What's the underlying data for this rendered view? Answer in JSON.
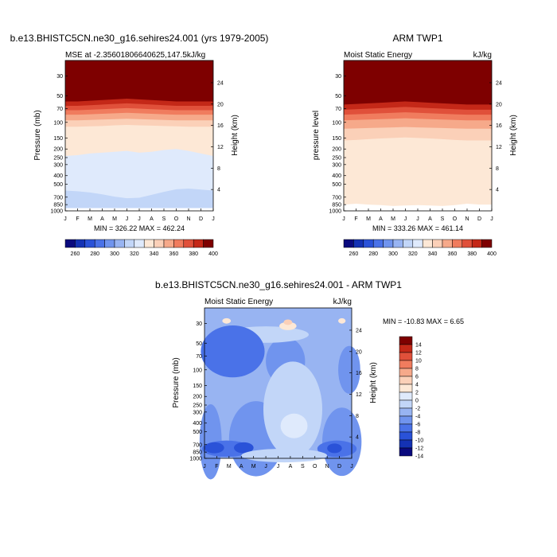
{
  "chart_data": [
    {
      "type": "contour",
      "title": "b.e13.BHISTC5CN.ne30_g16.sehires24.001 (yrs 1979-2005)",
      "subtitle_left": "MSE at -2.35601806640625,147.5kJ/kg",
      "subtitle_right": "",
      "ylabel": "Pressure (mb)",
      "ylabel_right": "Height (km)",
      "minmax": "MIN = 326.22 MAX = 462.24",
      "x_ticks": [
        "J",
        "F",
        "M",
        "A",
        "M",
        "J",
        "J",
        "A",
        "S",
        "O",
        "N",
        "D",
        "J"
      ],
      "p_ticks": [
        30,
        50,
        70,
        100,
        150,
        200,
        250,
        300,
        400,
        500,
        700,
        850,
        1000
      ],
      "height_ticks": [
        4,
        8,
        12,
        16,
        20,
        24
      ],
      "ylim": [
        1000,
        20
      ],
      "levels": [
        260,
        270,
        280,
        290,
        300,
        310,
        320,
        330,
        340,
        350,
        360,
        370,
        380,
        390,
        400
      ],
      "colorbar_labels": [
        260,
        280,
        300,
        320,
        340,
        360,
        380,
        400
      ],
      "boundaries": [
        {
          "level": 320,
          "p": [
            930,
            930,
            930,
            930,
            930,
            930,
            930,
            930,
            930,
            930,
            930,
            930,
            930
          ]
        },
        {
          "level": 330,
          "p": [
            590,
            600,
            620,
            650,
            690,
            720,
            710,
            660,
            610,
            570,
            560,
            575,
            590
          ]
        },
        {
          "level": 340,
          "p": [
            240,
            235,
            225,
            220,
            215,
            210,
            220,
            215,
            205,
            200,
            210,
            225,
            240
          ]
        },
        {
          "level": 350,
          "p": [
            112,
            112,
            111,
            110,
            108,
            107,
            108,
            109,
            110,
            111,
            112,
            112,
            112
          ]
        },
        {
          "level": 360,
          "p": [
            95,
            95,
            94,
            93,
            92,
            91,
            92,
            93,
            94,
            95,
            95,
            95,
            95
          ]
        },
        {
          "level": 370,
          "p": [
            82,
            82,
            81,
            80,
            79,
            78,
            79,
            80,
            81,
            82,
            82,
            82,
            82
          ]
        },
        {
          "level": 380,
          "p": [
            73,
            73,
            72,
            71,
            70,
            69,
            70,
            71,
            72,
            73,
            73,
            73,
            73
          ]
        },
        {
          "level": 390,
          "p": [
            65,
            65,
            64,
            63,
            62,
            61,
            62,
            63,
            64,
            65,
            65,
            65,
            65
          ]
        },
        {
          "level": 400,
          "p": [
            58,
            58,
            57,
            56,
            55,
            54,
            55,
            56,
            57,
            58,
            58,
            58,
            58
          ]
        }
      ]
    },
    {
      "type": "contour",
      "title": "ARM TWP1",
      "subtitle_left": "Moist Static Energy",
      "subtitle_right": "kJ/kg",
      "ylabel": "pressure level",
      "ylabel_right": "Height (km)",
      "minmax": "MIN = 333.26 MAX = 461.14",
      "x_ticks": [
        "J",
        "F",
        "M",
        "A",
        "M",
        "J",
        "J",
        "A",
        "S",
        "O",
        "N",
        "D",
        "J"
      ],
      "p_ticks": [
        30,
        50,
        70,
        100,
        150,
        200,
        250,
        300,
        400,
        500,
        700,
        850,
        1000
      ],
      "height_ticks": [
        4,
        8,
        12,
        16,
        20,
        24
      ],
      "ylim": [
        1000,
        20
      ],
      "levels": [
        260,
        270,
        280,
        290,
        300,
        310,
        320,
        330,
        340,
        350,
        360,
        370,
        380,
        390,
        400
      ],
      "colorbar_labels": [
        260,
        280,
        300,
        320,
        340,
        360,
        380,
        400
      ],
      "boundaries": [
        {
          "level": 340,
          "p": [
            850,
            830,
            850,
            860,
            880,
            870,
            860,
            870,
            880,
            860,
            830,
            850,
            850
          ]
        },
        {
          "level": 350,
          "p": [
            160,
            158,
            155,
            152,
            150,
            148,
            150,
            152,
            155,
            158,
            160,
            160,
            160
          ]
        },
        {
          "level": 360,
          "p": [
            118,
            117,
            116,
            115,
            114,
            113,
            114,
            115,
            116,
            117,
            118,
            118,
            118
          ]
        },
        {
          "level": 370,
          "p": [
            95,
            94,
            93,
            92,
            91,
            90,
            91,
            92,
            93,
            94,
            95,
            95,
            95
          ]
        },
        {
          "level": 380,
          "p": [
            82,
            81,
            80,
            79,
            78,
            77,
            78,
            79,
            80,
            81,
            82,
            82,
            82
          ]
        },
        {
          "level": 390,
          "p": [
            72,
            71,
            70,
            69,
            68,
            67,
            68,
            69,
            70,
            71,
            72,
            72,
            72
          ]
        },
        {
          "level": 400,
          "p": [
            63,
            62,
            61,
            60,
            59,
            58,
            59,
            60,
            61,
            62,
            63,
            63,
            63
          ]
        }
      ]
    },
    {
      "type": "contour",
      "title": "b.e13.BHISTC5CN.ne30_g16.sehires24.001 - ARM TWP1",
      "subtitle_left": "Moist Static Energy",
      "subtitle_right": "kJ/kg",
      "ylabel": "Pressure (mb)",
      "ylabel_right": "Height (km)",
      "minmax": "MIN = -10.83 MAX =   6.65",
      "x_ticks": [
        "J",
        "F",
        "M",
        "A",
        "M",
        "J",
        "J",
        "A",
        "S",
        "O",
        "N",
        "D",
        "J"
      ],
      "p_ticks": [
        30,
        50,
        70,
        100,
        150,
        200,
        250,
        300,
        400,
        500,
        700,
        850,
        1000
      ],
      "height_ticks": [
        4,
        8,
        12,
        16,
        20,
        24
      ],
      "ylim": [
        1000,
        20
      ],
      "levels": [
        -14,
        -12,
        -10,
        -8,
        -6,
        -4,
        -2,
        0,
        2,
        4,
        6,
        8,
        10,
        12,
        14
      ],
      "colorbar_labels": [
        14,
        12,
        10,
        8,
        6,
        4,
        2,
        0,
        -2,
        -4,
        -6,
        -8,
        -10,
        -12,
        -14
      ],
      "base_level": -4,
      "blobs": [
        {
          "level": -6,
          "cx": 4.2,
          "cp": 600,
          "rx": 2.2,
          "rp": 0.55
        },
        {
          "level": -6,
          "cx": 0.5,
          "cp": 650,
          "rx": 0.9,
          "rp": 0.55
        },
        {
          "level": -6,
          "cx": 11.2,
          "cp": 650,
          "rx": 1.6,
          "rp": 0.5
        },
        {
          "level": -6,
          "cx": 6.6,
          "cp": 80,
          "rx": 1.6,
          "rp": 0.35
        },
        {
          "level": -2,
          "cx": 5.0,
          "cp": 40,
          "rx": 3.5,
          "rp": 0.12
        },
        {
          "level": -8,
          "cx": 2.3,
          "cp": 62,
          "rx": 2.6,
          "rp": 0.38
        },
        {
          "level": -6,
          "cx": 11.8,
          "cp": 100,
          "rx": 0.9,
          "rp": 0.35
        },
        {
          "level": -2,
          "cx": 7.2,
          "cp": 280,
          "rx": 2.4,
          "rp": 0.7
        },
        {
          "level": 0,
          "cx": 7.3,
          "cp": 430,
          "rx": 1.1,
          "rp": 0.18
        },
        {
          "level": 2,
          "cx": 6.8,
          "cp": 32,
          "rx": 0.7,
          "rp": 0.06
        },
        {
          "level": 4,
          "cx": 6.8,
          "cp": 29,
          "rx": 0.35,
          "rp": 0.04
        },
        {
          "level": 2,
          "cx": 1.8,
          "cp": 28,
          "rx": 0.35,
          "rp": 0.04
        },
        {
          "level": 2,
          "cx": 11.2,
          "cp": 28,
          "rx": 0.3,
          "rp": 0.04
        },
        {
          "level": -8,
          "cx": 1.8,
          "cp": 780,
          "rx": 2.0,
          "rp": 0.12
        },
        {
          "level": -8,
          "cx": 10.8,
          "cp": 780,
          "rx": 1.6,
          "rp": 0.12
        },
        {
          "level": -10,
          "cx": 0.8,
          "cp": 760,
          "rx": 0.8,
          "rp": 0.08
        },
        {
          "level": -10,
          "cx": 3.2,
          "cp": 760,
          "rx": 0.8,
          "rp": 0.08
        },
        {
          "level": -10,
          "cx": 10.6,
          "cp": 770,
          "rx": 0.6,
          "rp": 0.07
        },
        {
          "level": -2,
          "cx": 6.5,
          "cp": 930,
          "rx": 3.5,
          "rp": 0.1
        }
      ]
    }
  ],
  "colors": {
    "mse_scale": [
      "#0a0a7e",
      "#1432b4",
      "#2a52d8",
      "#4a72e8",
      "#7094ee",
      "#98b4f2",
      "#c2d6f8",
      "#dfeafc",
      "#fde8d6",
      "#fbd0b8",
      "#f6a98a",
      "#f07c5e",
      "#e0503a",
      "#c42818",
      "#7e0000"
    ],
    "diff_scale": [
      "#0a0a7e",
      "#1432b4",
      "#2a52d8",
      "#4a72e8",
      "#7094ee",
      "#98b4f2",
      "#c2d6f8",
      "#dfeafc",
      "#fde8d6",
      "#fbd0b8",
      "#f6a98a",
      "#f07c5e",
      "#e0503a",
      "#c42818",
      "#7e0000"
    ]
  }
}
